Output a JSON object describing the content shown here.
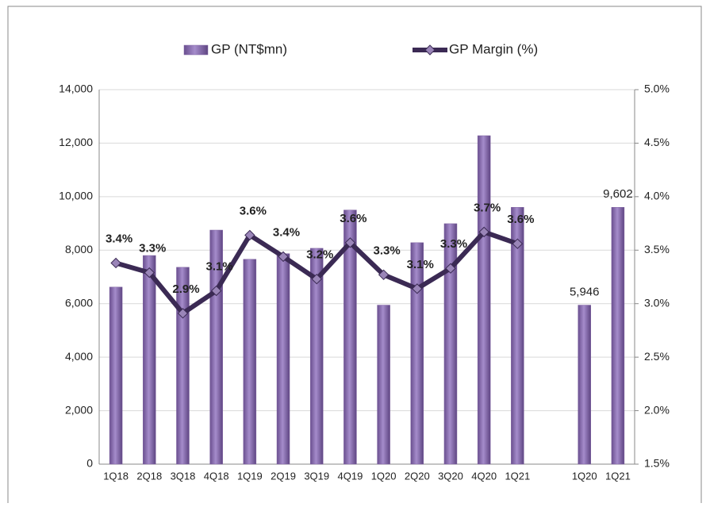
{
  "chart_data": {
    "type": "bar-line",
    "categories": [
      "1Q18",
      "2Q18",
      "3Q18",
      "4Q18",
      "1Q19",
      "2Q19",
      "3Q19",
      "4Q19",
      "1Q20",
      "2Q20",
      "3Q20",
      "4Q20",
      "1Q21",
      null,
      "1Q20",
      "1Q21"
    ],
    "series": [
      {
        "name": "GP (NT$mn)",
        "type": "bar",
        "color": "#8064a2",
        "values": [
          6620,
          7800,
          7360,
          8750,
          7660,
          7870,
          8070,
          9500,
          5946,
          8280,
          8990,
          12280,
          9602,
          null,
          5946,
          9602
        ],
        "value_labels": [
          null,
          null,
          null,
          null,
          null,
          null,
          null,
          null,
          null,
          null,
          null,
          null,
          null,
          null,
          "5,946",
          "9,602"
        ]
      },
      {
        "name": "GP Margin (%)",
        "type": "line",
        "axis": "y2",
        "color": "#3b2a54",
        "values": [
          3.38,
          3.29,
          2.91,
          3.12,
          3.64,
          3.44,
          3.23,
          3.57,
          3.27,
          3.14,
          3.33,
          3.67,
          3.56,
          null,
          null,
          null
        ],
        "value_labels": [
          "3.4%",
          "3.3%",
          "2.9%",
          "3.1%",
          "3.6%",
          "3.4%",
          "3.2%",
          "3.6%",
          "3.3%",
          "3.1%",
          "3.3%",
          "3.7%",
          "3.6%",
          null,
          null,
          null
        ]
      }
    ],
    "ylim": [
      0,
      14000
    ],
    "yticks": [
      0,
      {
        "value": 2000,
        "label": "2,000"
      },
      {
        "value": 4000,
        "label": "4,000"
      },
      {
        "value": 6000,
        "label": "6,000"
      },
      {
        "value": 8000,
        "label": "8,000"
      },
      {
        "value": 10000,
        "label": "10,000"
      },
      {
        "value": 12000,
        "label": "12,000"
      },
      {
        "value": 14000,
        "label": "14,000"
      }
    ],
    "y2lim": [
      1.5,
      5.0
    ],
    "y2ticks": [
      {
        "value": 1.5,
        "label": "1.5%"
      },
      {
        "value": 2.0,
        "label": "2.0%"
      },
      {
        "value": 2.5,
        "label": "2.5%"
      },
      {
        "value": 3.0,
        "label": "3.0%"
      },
      {
        "value": 3.5,
        "label": "3.5%"
      },
      {
        "value": 4.0,
        "label": "4.0%"
      },
      {
        "value": 4.5,
        "label": "4.5%"
      },
      {
        "value": 5.0,
        "label": "5.0%"
      }
    ],
    "grid": true,
    "legend": "top"
  }
}
